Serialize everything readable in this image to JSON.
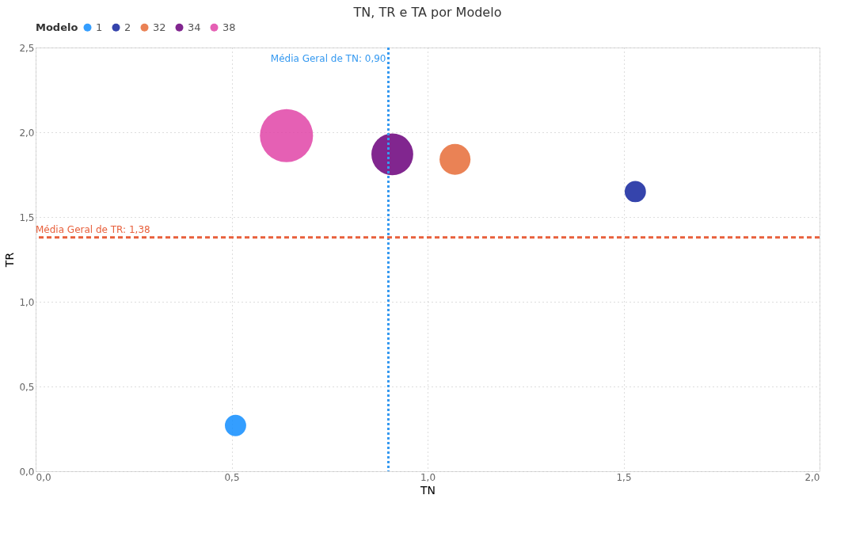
{
  "chart_data": {
    "type": "bubble",
    "title": "TN, TR e TA por Modelo",
    "xlabel": "TN",
    "ylabel": "TR",
    "legend_title": "Modelo",
    "legend": "top left",
    "grid": true,
    "xlim": [
      0,
      2
    ],
    "ylim": [
      0,
      2.5
    ],
    "xticks": [
      {
        "value": 0,
        "label": "0,0"
      },
      {
        "value": 0.5,
        "label": "0,5"
      },
      {
        "value": 1,
        "label": "1,0"
      },
      {
        "value": 1.5,
        "label": "1,5"
      },
      {
        "value": 2,
        "label": "2,0"
      }
    ],
    "yticks": [
      {
        "value": 0,
        "label": "0,0"
      },
      {
        "value": 0.5,
        "label": "0,5"
      },
      {
        "value": 1,
        "label": "1,0"
      },
      {
        "value": 1.5,
        "label": "1,5"
      },
      {
        "value": 2,
        "label": "2,0"
      },
      {
        "value": 2.5,
        "label": "2,5"
      }
    ],
    "series": [
      {
        "name": "1",
        "color": "#118dff",
        "x": [
          0.51
        ],
        "values": [
          0.27
        ],
        "sizes": [
          0.16
        ]
      },
      {
        "name": "2",
        "color": "#12239e",
        "x": [
          1.53
        ],
        "values": [
          1.65
        ],
        "sizes": [
          0.16
        ]
      },
      {
        "name": "32",
        "color": "#e66c37",
        "x": [
          1.07
        ],
        "values": [
          1.84
        ],
        "sizes": [
          0.34
        ]
      },
      {
        "name": "34",
        "color": "#6b007b",
        "x": [
          0.91
        ],
        "values": [
          1.87
        ],
        "sizes": [
          0.62
        ]
      },
      {
        "name": "38",
        "color": "#e044a7",
        "x": [
          0.64
        ],
        "values": [
          1.98
        ],
        "sizes": [
          1
        ]
      }
    ],
    "ref_lines": [
      {
        "axis": "x",
        "value": 0.9,
        "label": "Média Geral de TN: 0,90",
        "color": "#3599f0",
        "line_style": "dotted"
      },
      {
        "axis": "y",
        "value": 1.38,
        "label": "Média Geral de TR: 1,38",
        "color": "#e8603c",
        "line_style": "dashed"
      }
    ]
  }
}
